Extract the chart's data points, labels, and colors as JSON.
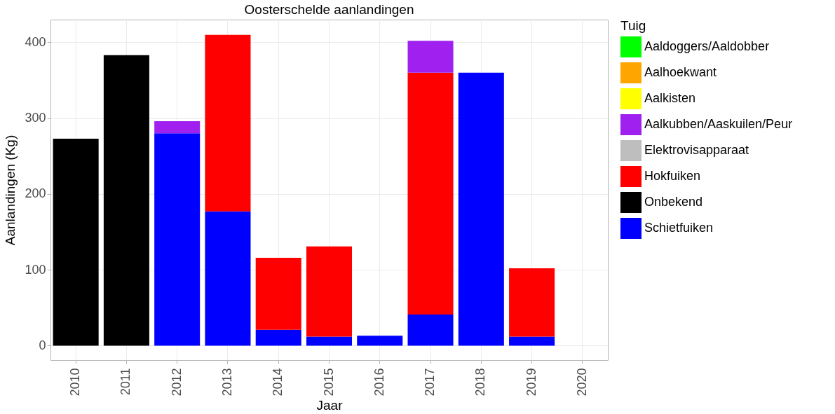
{
  "chart_data": {
    "type": "bar",
    "title": "Oosterschelde aanlandingen",
    "xlabel": "Jaar",
    "ylabel": "Aanlandingen (Kg)",
    "legend_title": "Tuig",
    "categories": [
      "2010",
      "2011",
      "2012",
      "2013",
      "2014",
      "2015",
      "2016",
      "2017",
      "2018",
      "2019",
      "2020"
    ],
    "stacked": true,
    "ylim": [
      -19,
      430
    ],
    "yticks": [
      0,
      100,
      200,
      300,
      400
    ],
    "grid": true,
    "legend": "right",
    "series": [
      {
        "name": "Schietfuiken",
        "color": "#0000ff",
        "values": [
          null,
          null,
          280,
          177,
          21,
          12,
          13,
          41,
          360,
          12,
          null
        ]
      },
      {
        "name": "Onbekend",
        "color": "#000000",
        "values": [
          273,
          383,
          null,
          null,
          null,
          null,
          null,
          null,
          null,
          null,
          null
        ]
      },
      {
        "name": "Hokfuiken",
        "color": "#ff0000",
        "values": [
          null,
          null,
          null,
          233,
          95,
          119,
          null,
          319,
          null,
          90,
          null
        ]
      },
      {
        "name": "Elektrovisapparaat",
        "color": "#bebebe",
        "values": [
          null,
          null,
          null,
          null,
          null,
          null,
          null,
          null,
          null,
          null,
          null
        ]
      },
      {
        "name": "Aalkubben/Aaskuilen/Peur",
        "color": "#a020f0",
        "values": [
          null,
          null,
          16,
          null,
          null,
          null,
          null,
          42,
          null,
          null,
          null
        ]
      },
      {
        "name": "Aalkisten",
        "color": "#ffff00",
        "values": [
          null,
          null,
          null,
          null,
          null,
          null,
          null,
          null,
          null,
          null,
          null
        ]
      },
      {
        "name": "Aalhoekwant",
        "color": "#ffa500",
        "values": [
          null,
          null,
          null,
          null,
          null,
          null,
          null,
          null,
          null,
          null,
          null
        ]
      },
      {
        "name": "Aaldoggers/Aaldobber",
        "color": "#00ff00",
        "values": [
          null,
          null,
          null,
          null,
          null,
          null,
          null,
          null,
          null,
          null,
          null
        ]
      }
    ]
  }
}
